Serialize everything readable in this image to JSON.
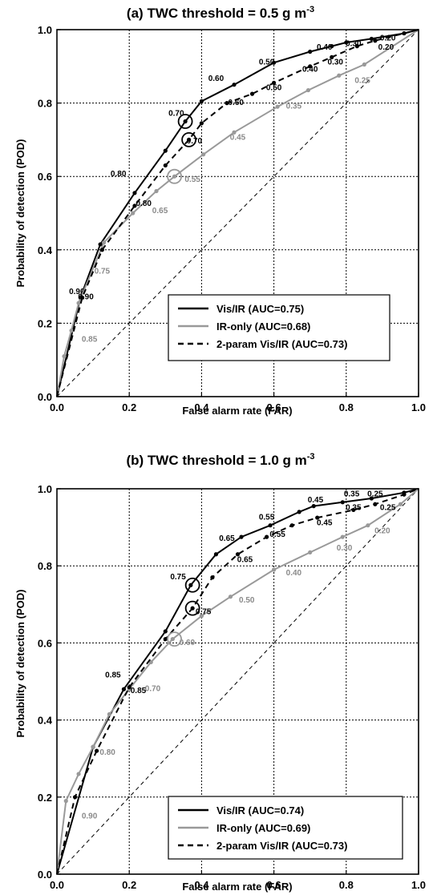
{
  "chart_data": [
    {
      "type": "line",
      "panel": "(a)",
      "title": "TWC threshold = 0.5 g m",
      "title_sup": "-3",
      "xlabel": "False alarm rate (FAR)",
      "ylabel": "Probability of detection (POD)",
      "xlim": [
        0,
        1
      ],
      "ylim": [
        0,
        1
      ],
      "xticks": [
        "0.0",
        "0.2",
        "0.4",
        "0.6",
        "0.8",
        "1.0"
      ],
      "yticks": [
        "0.0",
        "0.2",
        "0.4",
        "0.6",
        "0.8",
        "1.0"
      ],
      "grid": true,
      "legend_position": "bottom-right",
      "series": [
        {
          "name": "Vis/IR (AUC=0.75)",
          "color": "#000000",
          "dash": "solid",
          "x": [
            0,
            0.065,
            0.12,
            0.215,
            0.3,
            0.355,
            0.4,
            0.49,
            0.6,
            0.7,
            0.76,
            0.8,
            0.87,
            0.96,
            1.0
          ],
          "y": [
            0,
            0.27,
            0.415,
            0.555,
            0.67,
            0.75,
            0.805,
            0.85,
            0.91,
            0.94,
            0.955,
            0.965,
            0.975,
            0.99,
            1.0
          ],
          "labels": [
            {
              "x": 0.055,
              "y": 0.28,
              "text": "0.90"
            },
            {
              "x": 0.17,
              "y": 0.6,
              "text": "0.80"
            },
            {
              "x": 0.33,
              "y": 0.765,
              "text": "0.70"
            },
            {
              "x": 0.44,
              "y": 0.86,
              "text": "0.60"
            },
            {
              "x": 0.58,
              "y": 0.905,
              "text": "0.50"
            },
            {
              "x": 0.74,
              "y": 0.945,
              "text": "0.40"
            },
            {
              "x": 0.82,
              "y": 0.955,
              "text": "0.30"
            },
            {
              "x": 0.915,
              "y": 0.97,
              "text": "0.20"
            }
          ]
        },
        {
          "name": "IR-only (AUC=0.68)",
          "color": "#999999",
          "dash": "solid",
          "x": [
            0,
            0.02,
            0.04,
            0.06,
            0.13,
            0.21,
            0.275,
            0.325,
            0.405,
            0.49,
            0.61,
            0.695,
            0.78,
            0.85,
            1.0
          ],
          "y": [
            0,
            0.11,
            0.18,
            0.255,
            0.42,
            0.5,
            0.56,
            0.6,
            0.66,
            0.72,
            0.79,
            0.835,
            0.875,
            0.905,
            1.0
          ],
          "labels": [
            {
              "x": 0.09,
              "y": 0.15,
              "text": "0.85"
            },
            {
              "x": 0.125,
              "y": 0.335,
              "text": "0.75"
            },
            {
              "x": 0.285,
              "y": 0.5,
              "text": "0.65"
            },
            {
              "x": 0.375,
              "y": 0.585,
              "text": "0.55"
            },
            {
              "x": 0.5,
              "y": 0.7,
              "text": "0.45"
            },
            {
              "x": 0.655,
              "y": 0.785,
              "text": "0.35"
            },
            {
              "x": 0.845,
              "y": 0.855,
              "text": "0.25"
            }
          ]
        },
        {
          "name": "2-param Vis/IR (AUC=0.73)",
          "color": "#000000",
          "dash": "dashed",
          "x": [
            0,
            0.07,
            0.125,
            0.215,
            0.3,
            0.365,
            0.4,
            0.47,
            0.54,
            0.6,
            0.7,
            0.76,
            0.83,
            0.88,
            0.96,
            1.0
          ],
          "y": [
            0,
            0.27,
            0.4,
            0.52,
            0.63,
            0.7,
            0.745,
            0.8,
            0.825,
            0.855,
            0.9,
            0.925,
            0.955,
            0.97,
            0.99,
            1.0
          ],
          "labels": [
            {
              "x": 0.08,
              "y": 0.265,
              "text": "0.90"
            },
            {
              "x": 0.24,
              "y": 0.52,
              "text": "0.80"
            },
            {
              "x": 0.38,
              "y": 0.69,
              "text": "0.70"
            },
            {
              "x": 0.495,
              "y": 0.795,
              "text": "0.60"
            },
            {
              "x": 0.6,
              "y": 0.835,
              "text": "0.50"
            },
            {
              "x": 0.7,
              "y": 0.885,
              "text": "0.40"
            },
            {
              "x": 0.77,
              "y": 0.905,
              "text": "0.30"
            },
            {
              "x": 0.91,
              "y": 0.945,
              "text": "0.20"
            }
          ]
        }
      ],
      "circled_points": [
        {
          "x": 0.355,
          "y": 0.75,
          "color": "#000000"
        },
        {
          "x": 0.365,
          "y": 0.7,
          "color": "#000000"
        },
        {
          "x": 0.325,
          "y": 0.6,
          "color": "#999999"
        }
      ]
    },
    {
      "type": "line",
      "panel": "(b)",
      "title": "TWC threshold = 1.0 g m",
      "title_sup": "-3",
      "xlabel": "False alarm rate (FAR)",
      "ylabel": "Probability of detection (POD)",
      "xlim": [
        0,
        1
      ],
      "ylim": [
        0,
        1
      ],
      "xticks": [
        "0.0",
        "0.2",
        "0.4",
        "0.6",
        "0.8",
        "1.0"
      ],
      "yticks": [
        "0.0",
        "0.2",
        "0.4",
        "0.6",
        "0.8",
        "1.0"
      ],
      "grid": true,
      "legend_position": "bottom-right",
      "series": [
        {
          "name": "Vis/IR (AUC=0.74)",
          "color": "#000000",
          "dash": "solid",
          "x": [
            0,
            0.1,
            0.185,
            0.3,
            0.37,
            0.44,
            0.51,
            0.59,
            0.67,
            0.71,
            0.79,
            0.87,
            0.96,
            1.0
          ],
          "y": [
            0,
            0.33,
            0.48,
            0.63,
            0.75,
            0.83,
            0.875,
            0.905,
            0.94,
            0.955,
            0.965,
            0.975,
            0.99,
            1.0
          ],
          "labels": [
            {
              "x": 0.155,
              "y": 0.51,
              "text": "0.85"
            },
            {
              "x": 0.335,
              "y": 0.765,
              "text": "0.75"
            },
            {
              "x": 0.47,
              "y": 0.865,
              "text": "0.65"
            },
            {
              "x": 0.58,
              "y": 0.92,
              "text": "0.55"
            },
            {
              "x": 0.715,
              "y": 0.965,
              "text": "0.45"
            },
            {
              "x": 0.815,
              "y": 0.98,
              "text": "0.35"
            },
            {
              "x": 0.88,
              "y": 0.98,
              "text": "0.25"
            }
          ]
        },
        {
          "name": "IR-only (AUC=0.69)",
          "color": "#999999",
          "dash": "solid",
          "x": [
            0,
            0.025,
            0.06,
            0.1,
            0.145,
            0.2,
            0.26,
            0.32,
            0.4,
            0.48,
            0.6,
            0.7,
            0.79,
            0.86,
            0.95,
            1.0
          ],
          "y": [
            0,
            0.19,
            0.26,
            0.33,
            0.415,
            0.48,
            0.55,
            0.61,
            0.67,
            0.72,
            0.79,
            0.835,
            0.875,
            0.905,
            0.96,
            1.0
          ],
          "labels": [
            {
              "x": 0.09,
              "y": 0.145,
              "text": "0.90"
            },
            {
              "x": 0.14,
              "y": 0.31,
              "text": "0.80"
            },
            {
              "x": 0.265,
              "y": 0.475,
              "text": "0.70"
            },
            {
              "x": 0.36,
              "y": 0.595,
              "text": "0.60"
            },
            {
              "x": 0.525,
              "y": 0.705,
              "text": "0.50"
            },
            {
              "x": 0.655,
              "y": 0.775,
              "text": "0.40"
            },
            {
              "x": 0.795,
              "y": 0.84,
              "text": "0.30"
            },
            {
              "x": 0.9,
              "y": 0.885,
              "text": "0.20"
            }
          ]
        },
        {
          "name": "2-param Vis/IR (AUC=0.73)",
          "color": "#000000",
          "dash": "dashed",
          "x": [
            0,
            0.05,
            0.11,
            0.2,
            0.3,
            0.375,
            0.43,
            0.5,
            0.58,
            0.65,
            0.72,
            0.82,
            0.88,
            0.96,
            1.0
          ],
          "y": [
            0,
            0.2,
            0.32,
            0.485,
            0.61,
            0.69,
            0.77,
            0.83,
            0.875,
            0.905,
            0.925,
            0.945,
            0.96,
            0.985,
            1.0
          ],
          "labels": [
            {
              "x": 0.225,
              "y": 0.47,
              "text": "0.85"
            },
            {
              "x": 0.405,
              "y": 0.675,
              "text": "0.75"
            },
            {
              "x": 0.52,
              "y": 0.81,
              "text": "0.65"
            },
            {
              "x": 0.61,
              "y": 0.875,
              "text": "0.55"
            },
            {
              "x": 0.74,
              "y": 0.905,
              "text": "0.45"
            },
            {
              "x": 0.82,
              "y": 0.945,
              "text": "0.35"
            },
            {
              "x": 0.915,
              "y": 0.945,
              "text": "0.25"
            }
          ]
        }
      ],
      "circled_points": [
        {
          "x": 0.375,
          "y": 0.75,
          "color": "#000000"
        },
        {
          "x": 0.375,
          "y": 0.69,
          "color": "#000000"
        },
        {
          "x": 0.325,
          "y": 0.61,
          "color": "#999999"
        }
      ]
    }
  ]
}
